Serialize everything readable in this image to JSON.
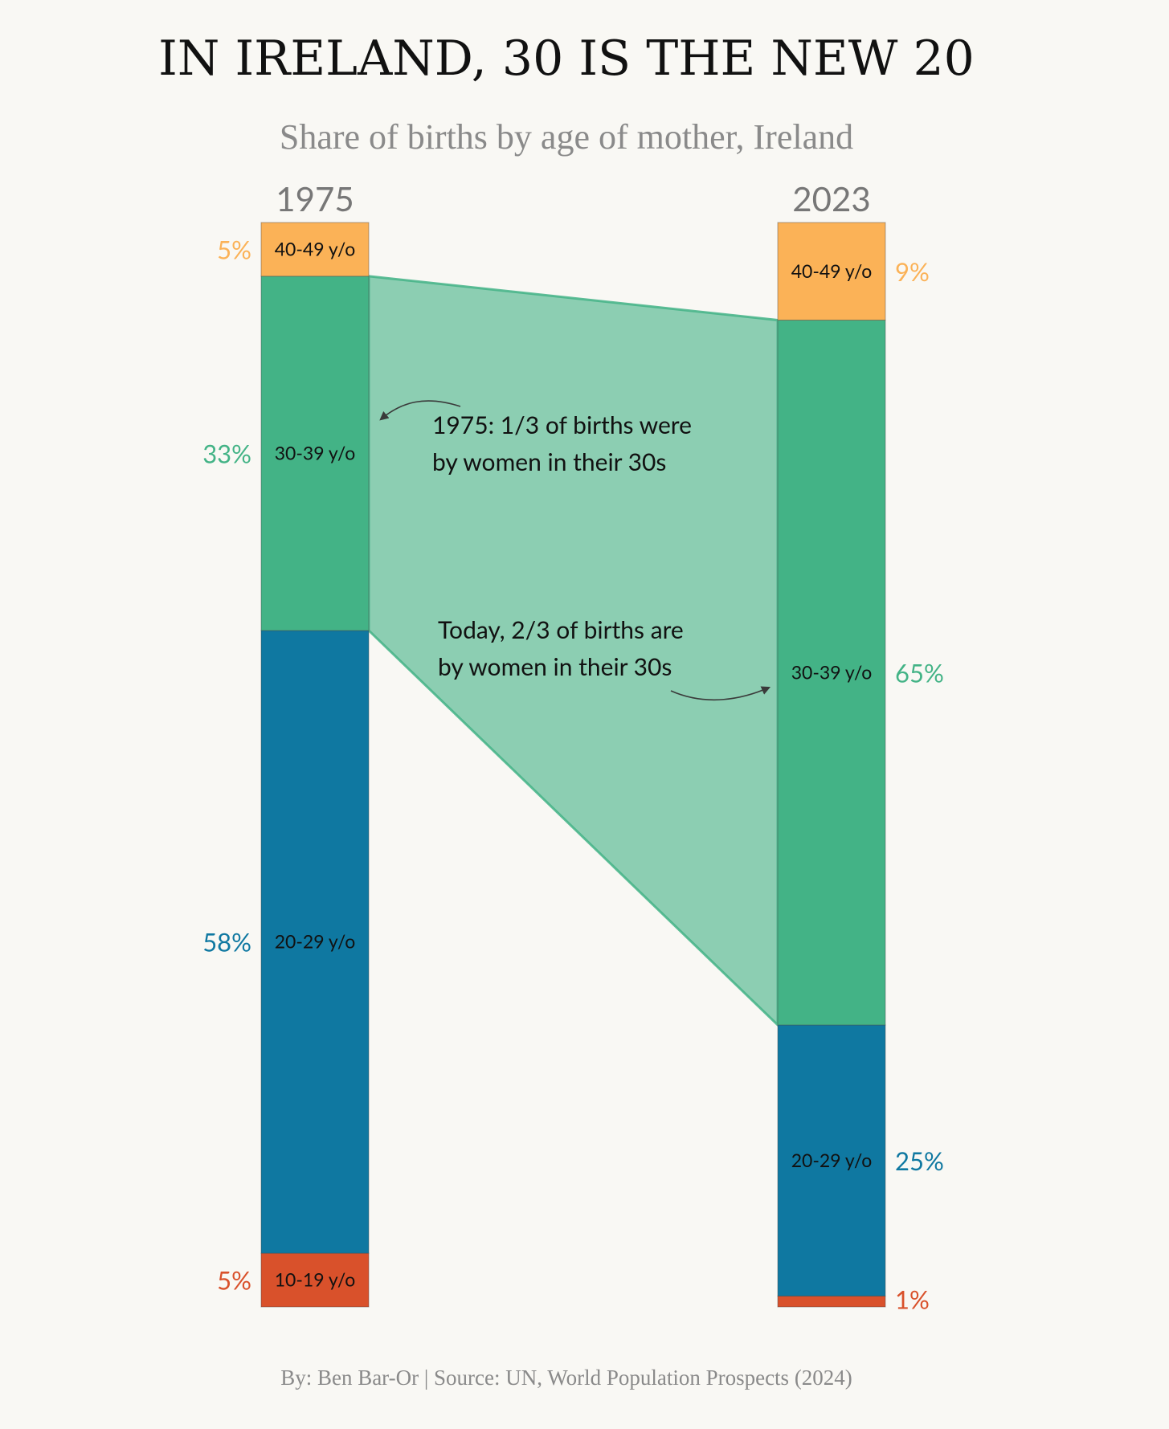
{
  "title": "IN IRELAND, 30 IS THE NEW 20",
  "subtitle": "Share of births by age of mother, Ireland",
  "caption": "By: Ben Bar-Or | Source: UN, World Population Prospects (2024)",
  "chart_data": {
    "type": "bar",
    "subtype": "stacked-100-percent slope comparison",
    "categories": [
      "1975",
      "2023"
    ],
    "series": [
      {
        "name": "10-19 y/o",
        "values": [
          5,
          1
        ],
        "labels": [
          "5%",
          "1%"
        ],
        "color": "#d9512b"
      },
      {
        "name": "20-29 y/o",
        "values": [
          58,
          25
        ],
        "labels": [
          "58%",
          "25%"
        ],
        "color": "#0f78a1"
      },
      {
        "name": "30-39 y/o",
        "values": [
          33,
          65
        ],
        "labels": [
          "33%",
          "65%"
        ],
        "color": "#43b386"
      },
      {
        "name": "40-49 y/o",
        "values": [
          5,
          9
        ],
        "labels": [
          "5%",
          "9%"
        ],
        "color": "#fbb257"
      }
    ],
    "stack_order": "bottom-to-top",
    "percent_label_side": [
      "left",
      "right"
    ],
    "highlight": {
      "series": "30-39 y/o",
      "band_color": "#43b386",
      "band_opacity": 0.6
    },
    "annotations": [
      {
        "text_lines": [
          "1975: 1/3 of births were",
          "by women in their 30s"
        ],
        "points_to": "1975"
      },
      {
        "text_lines": [
          "Today, 2/3 of births are",
          "by women in their 30s"
        ],
        "points_to": "2023"
      }
    ]
  }
}
